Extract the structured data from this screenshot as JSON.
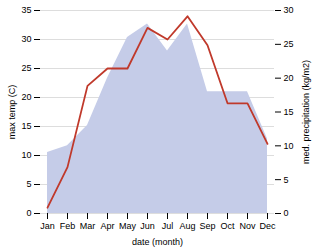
{
  "chart_data": {
    "type": "combo",
    "categories": [
      "Jan",
      "Feb",
      "Mar",
      "Apr",
      "May",
      "Jun",
      "Jul",
      "Aug",
      "Sep",
      "Oct",
      "Nov",
      "Dec"
    ],
    "series": [
      {
        "type": "area",
        "axis": "y2",
        "color": "#c5cce8",
        "values": [
          9,
          10,
          13,
          20,
          26,
          28,
          24,
          28,
          18,
          18,
          18,
          11
        ]
      },
      {
        "type": "line",
        "color": "#c0392b",
        "values": [
          1,
          8,
          22,
          25,
          25,
          32,
          30,
          34,
          29,
          19,
          19,
          12
        ]
      }
    ],
    "xlabel": "date (month)",
    "ylabel": "max temp (C)",
    "y2label": "med. precipitation (kg/m2)",
    "ylim": [
      0,
      35
    ],
    "yticks": [
      0,
      5,
      10,
      15,
      20,
      25,
      30,
      35
    ],
    "y2lim": [
      0,
      30
    ],
    "y2ticks": [
      0,
      5,
      10,
      15,
      20,
      25,
      30
    ],
    "grid": true
  }
}
